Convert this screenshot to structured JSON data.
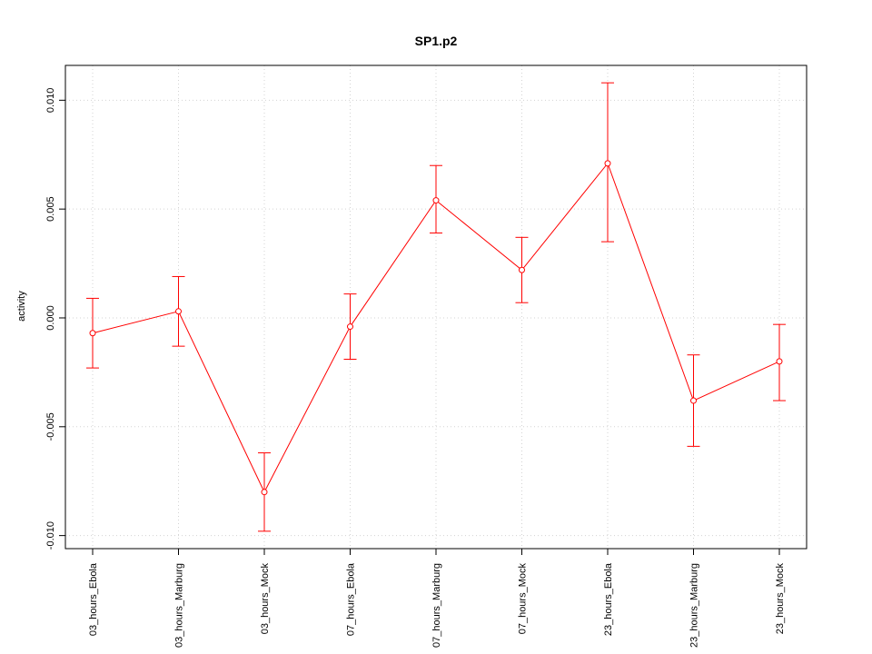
{
  "chart_data": {
    "type": "line",
    "title": "SP1.p2",
    "xlabel": "",
    "ylabel": "activity",
    "categories": [
      "03_hours_Ebola",
      "03_hours_Marburg",
      "03_hours_Mock",
      "07_hours_Ebola",
      "07_hours_Marburg",
      "07_hours_Mock",
      "23_hours_Ebola",
      "23_hours_Marburg",
      "23_hours_Mock"
    ],
    "series": [
      {
        "values": [
          -0.0007,
          0.0003,
          -0.008,
          -0.0004,
          0.0054,
          0.0022,
          0.0071,
          -0.0038,
          -0.002
        ],
        "error_upper": [
          0.0009,
          0.0019,
          -0.0062,
          0.0011,
          0.007,
          0.0037,
          0.0108,
          -0.0017,
          -0.0003
        ],
        "error_lower": [
          -0.0023,
          -0.0013,
          -0.0098,
          -0.0019,
          0.0039,
          0.0007,
          0.0035,
          -0.0059,
          -0.0038
        ]
      }
    ],
    "ylim": [
      -0.0106,
      0.0116
    ],
    "yticks": [
      -0.01,
      -0.005,
      0.0,
      0.005,
      0.01
    ],
    "ytick_labels": [
      "-0.010",
      "-0.005",
      "0.000",
      "0.005",
      "0.010"
    ],
    "grid": true,
    "color": "#ff0000",
    "grid_color": "#d3d3d3"
  }
}
